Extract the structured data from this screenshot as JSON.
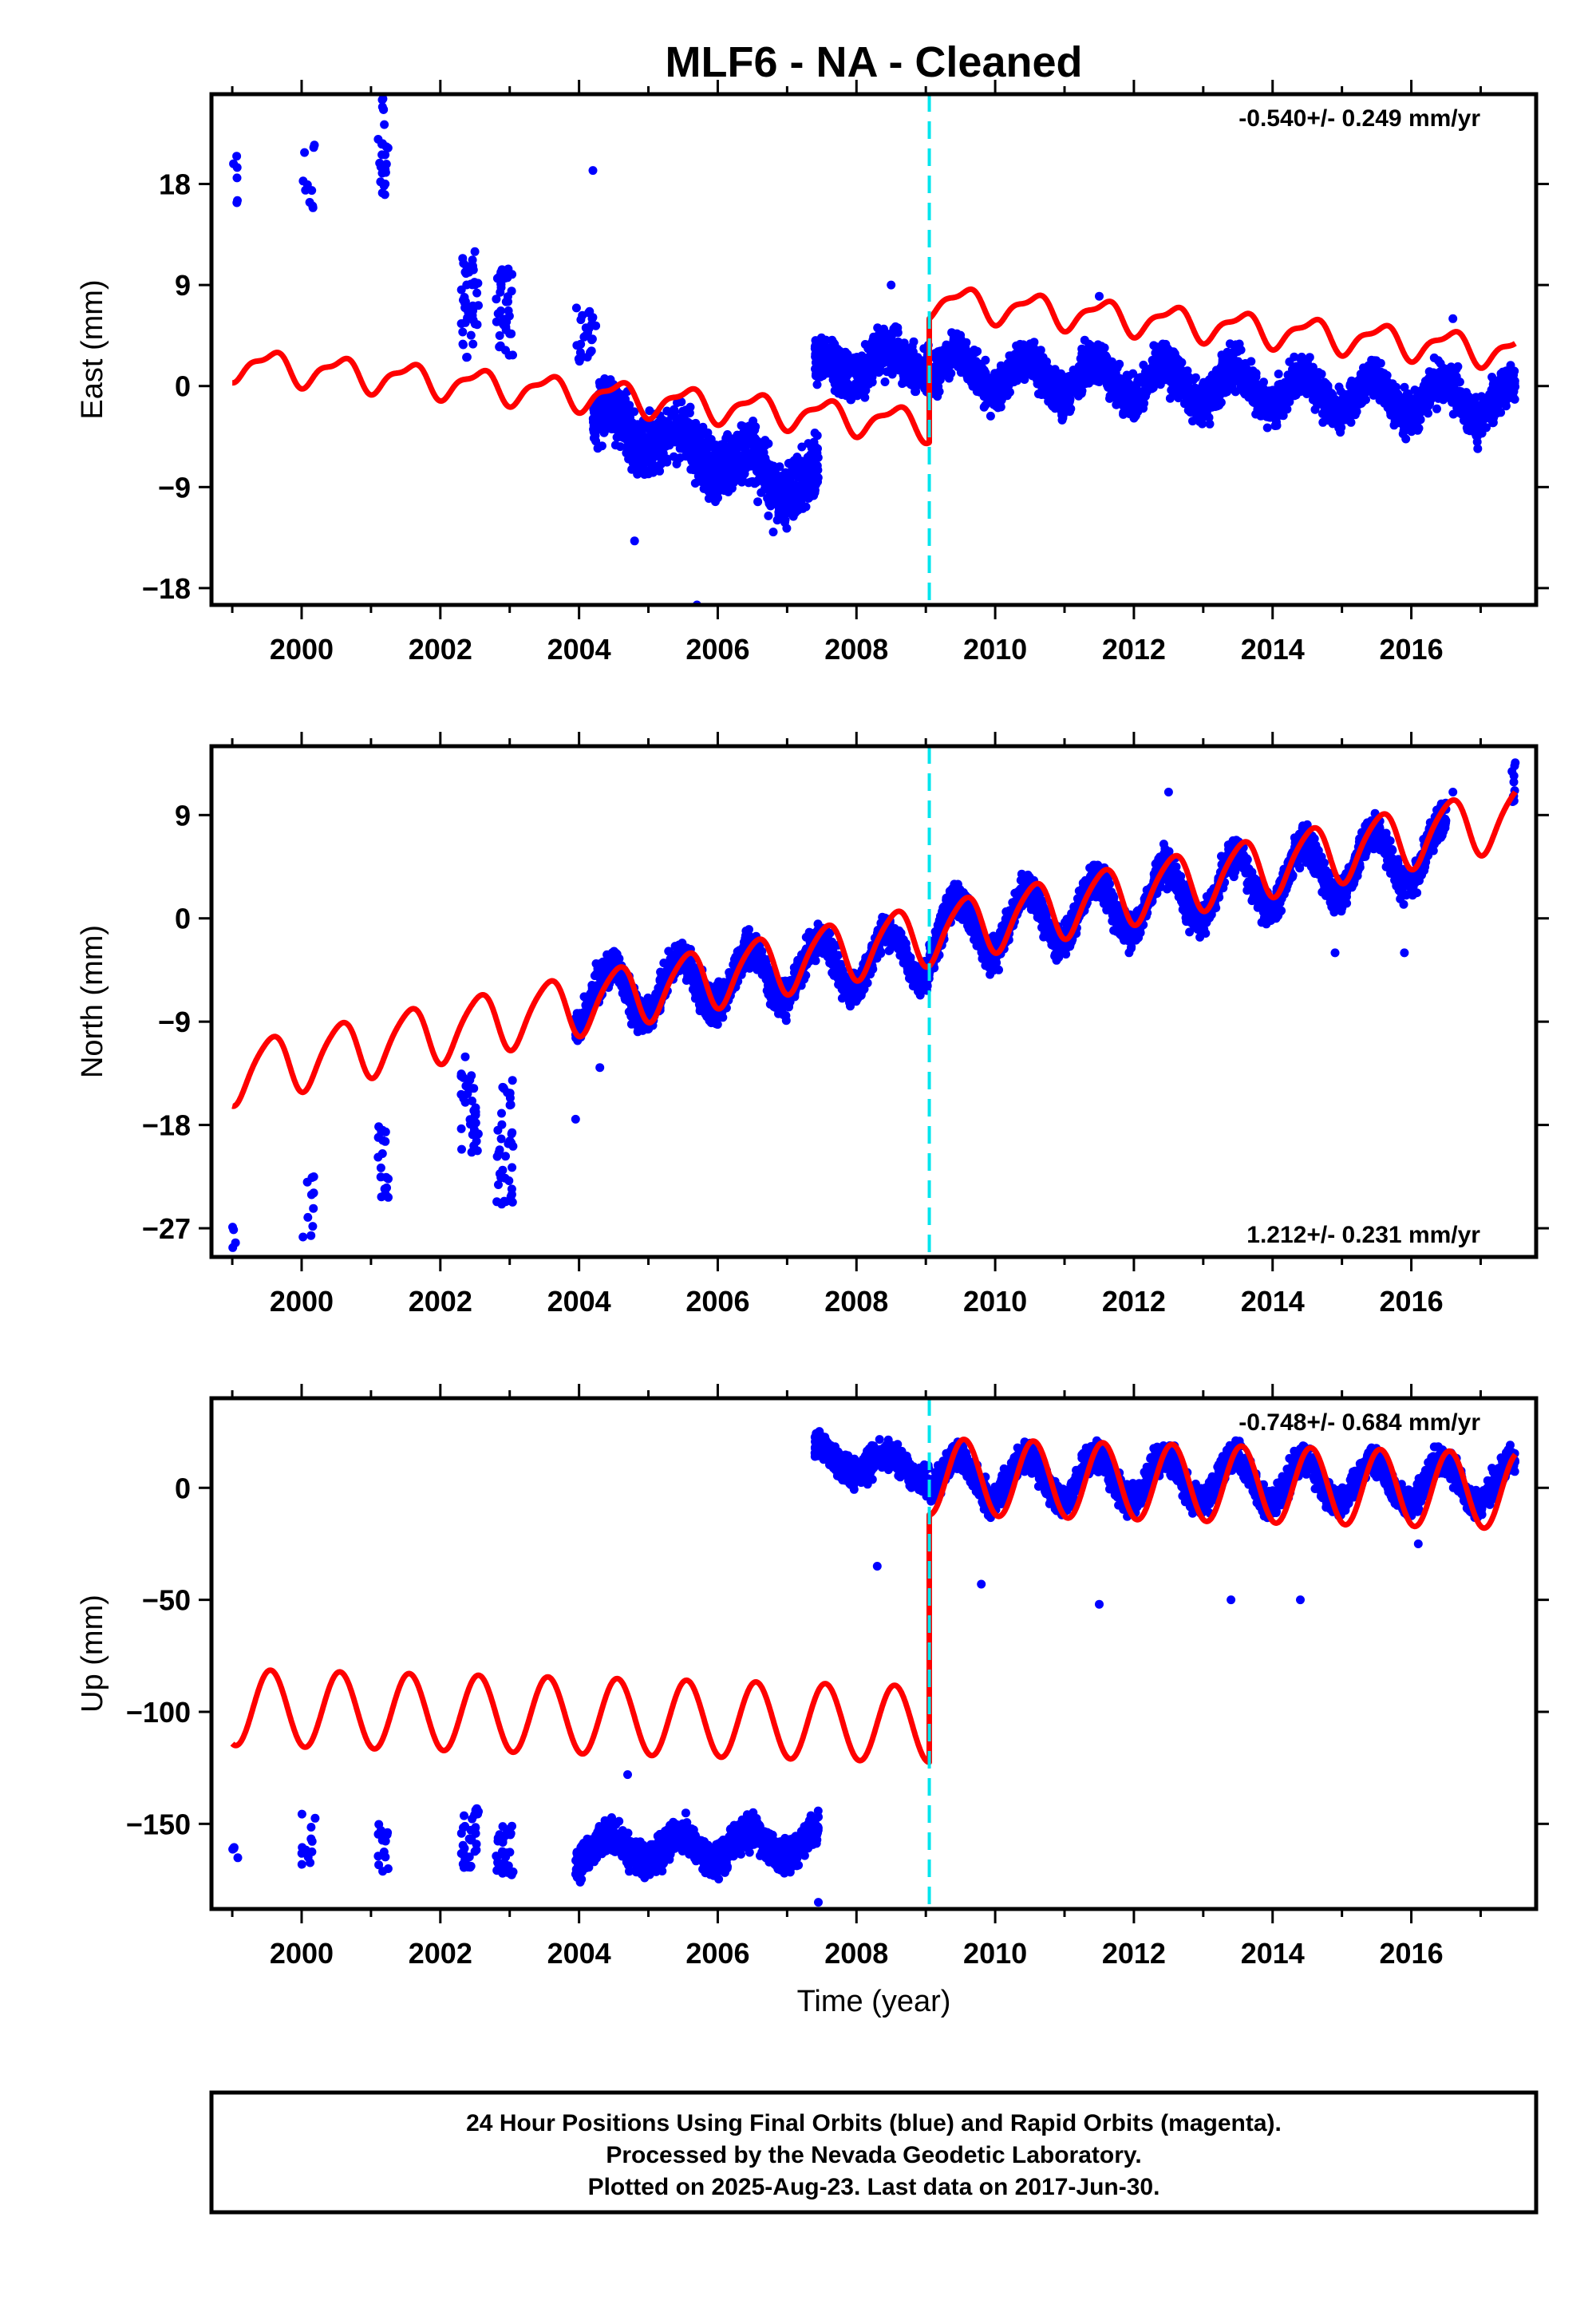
{
  "title": "MLF6  - NA - Cleaned",
  "colors": {
    "data": "#0000ff",
    "model": "#ff0000",
    "break": "#00e5ee",
    "frame": "#000000"
  },
  "footer": {
    "line1": "24 Hour Positions Using Final Orbits (blue) and Rapid Orbits (magenta).",
    "line2": "Processed by the Nevada Geodetic Laboratory.",
    "line3": "Plotted on 2025-Aug-23. Last data on 2017-Jun-30."
  },
  "chart_data": [
    {
      "type": "scatter",
      "component": "East",
      "ylabel": "East (mm)",
      "rate_text": "-0.540+/- 0.249 mm/yr",
      "rate_position": "top-right",
      "xlim": [
        1998.7,
        2017.8
      ],
      "ylim": [
        -19.5,
        26
      ],
      "yticks": [
        -18,
        -9,
        0,
        9,
        18
      ],
      "ytick_labels": [
        "−18",
        "−9",
        "0",
        "9",
        "18"
      ],
      "xticks": [
        2000,
        2002,
        2004,
        2006,
        2008,
        2010,
        2012,
        2014,
        2016
      ],
      "break_epoch": 2009.05,
      "series": [
        {
          "name": "Final Orbits (blue)",
          "clusters": [
            {
              "t0": 1999.0,
              "t1": 1999.1,
              "y_min": 14.5,
              "y_max": 20.5,
              "count": 6
            },
            {
              "t0": 2000.0,
              "t1": 2000.2,
              "y_min": 14.5,
              "y_max": 22.5,
              "count": 10
            },
            {
              "t0": 2001.1,
              "t1": 2001.25,
              "y_min": 17,
              "y_max": 26,
              "count": 25
            },
            {
              "t0": 2002.3,
              "t1": 2002.55,
              "y_min": 2.5,
              "y_max": 12,
              "count": 45
            },
            {
              "t0": 2002.8,
              "t1": 2003.05,
              "y_min": 2.5,
              "y_max": 10.5,
              "count": 40
            },
            {
              "t0": 2003.95,
              "t1": 2004.25,
              "y_min": 2,
              "y_max": 7,
              "count": 25
            },
            {
              "t0": 2004.2,
              "t1": 2007.45,
              "trend_start": -3,
              "trend_end": -9,
              "annual": 1.5,
              "scatter": 2.4,
              "count": 1200
            },
            {
              "t0": 2007.4,
              "t1": 2009.05,
              "trend_start": 1.5,
              "trend_end": 2.5,
              "annual": 1.3,
              "scatter": 1.9,
              "count": 600
            },
            {
              "t0": 2009.05,
              "t1": 2017.5,
              "trend_start": 1.5,
              "trend_end": -1.5,
              "annual": 1.6,
              "scatter": 1.7,
              "count": 2800
            }
          ],
          "outliers": [
            [
              2004.2,
              19.2
            ],
            [
              2004.8,
              -13.8
            ],
            [
              2005.7,
              -19.5
            ],
            [
              2006.8,
              -13
            ],
            [
              2008.5,
              9
            ],
            [
              2011.5,
              8
            ],
            [
              2016.6,
              6
            ]
          ]
        },
        {
          "name": "Model (red)",
          "segments": [
            {
              "t0": 1999.0,
              "t1": 2009.05,
              "offset": 2.0,
              "rate": -0.54,
              "annual": 1.3,
              "semiannual": 0.5
            },
            {
              "t0": 2009.05,
              "t1": 2017.5,
              "offset": 7.6,
              "rate": -0.54,
              "annual": 1.3,
              "semiannual": 0.5
            }
          ]
        }
      ]
    },
    {
      "type": "scatter",
      "component": "North",
      "ylabel": "North (mm)",
      "rate_text": "1.212+/- 0.231 mm/yr",
      "rate_position": "bottom-right",
      "xlim": [
        1998.7,
        2017.8
      ],
      "ylim": [
        -29.5,
        15
      ],
      "yticks": [
        -27,
        -18,
        -9,
        0,
        9
      ],
      "ytick_labels": [
        "−27",
        "−18",
        "−9",
        "0",
        "9"
      ],
      "xticks": [
        2000,
        2002,
        2004,
        2006,
        2008,
        2010,
        2012,
        2014,
        2016
      ],
      "break_epoch": 2009.05,
      "series": [
        {
          "name": "Final Orbits (blue)",
          "clusters": [
            {
              "t0": 1999.0,
              "t1": 1999.1,
              "y_min": -29,
              "y_max": -26.5,
              "count": 4
            },
            {
              "t0": 2000.0,
              "t1": 2000.2,
              "y_min": -28,
              "y_max": -21,
              "count": 10
            },
            {
              "t0": 2001.1,
              "t1": 2001.25,
              "y_min": -25,
              "y_max": -18,
              "count": 18
            },
            {
              "t0": 2002.3,
              "t1": 2002.55,
              "y_min": -20.5,
              "y_max": -12,
              "count": 35
            },
            {
              "t0": 2002.8,
              "t1": 2003.05,
              "y_min": -25,
              "y_max": -14,
              "count": 40
            },
            {
              "t0": 2003.95,
              "t1": 2009.05,
              "trend_start": -7,
              "trend_end": -3,
              "annual": 2.4,
              "scatter": 1.4,
              "count": 1700
            },
            {
              "t0": 2009.05,
              "t1": 2016.5,
              "trend_start": -1.5,
              "trend_end": 6,
              "annual": 2.6,
              "scatter": 1.4,
              "count": 2600
            },
            {
              "t0": 2017.45,
              "t1": 2017.5,
              "y_min": 9.5,
              "y_max": 14,
              "count": 10
            }
          ],
          "outliers": [
            [
              2003.95,
              -17.5
            ],
            [
              2004.3,
              -13
            ],
            [
              2012.5,
              11
            ],
            [
              2014.9,
              -3
            ],
            [
              2015.9,
              -3
            ],
            [
              2016.6,
              11
            ]
          ]
        },
        {
          "name": "Model (red)",
          "segments": [
            {
              "t0": 1999.0,
              "t1": 2017.5,
              "offset": -13.5,
              "rate": 1.212,
              "annual": 2.6,
              "semiannual": 0.4
            }
          ]
        }
      ]
    },
    {
      "type": "scatter",
      "component": "Up",
      "ylabel": "Up (mm)",
      "rate_text": "-0.748+/- 0.684 mm/yr",
      "rate_position": "top-right",
      "xlim": [
        1998.7,
        2017.8
      ],
      "ylim": [
        -188,
        40
      ],
      "yticks": [
        -150,
        -100,
        -50,
        0
      ],
      "ytick_labels": [
        "−150",
        "−100",
        "−50",
        "0"
      ],
      "xticks": [
        2000,
        2002,
        2004,
        2006,
        2008,
        2010,
        2012,
        2014,
        2016
      ],
      "xlabel": "Time (year)",
      "break_epoch": 2009.05,
      "series": [
        {
          "name": "Final Orbits (blue)",
          "clusters": [
            {
              "t0": 1999.0,
              "t1": 1999.1,
              "y_min": -166,
              "y_max": -158,
              "count": 5
            },
            {
              "t0": 2000.0,
              "t1": 2000.2,
              "y_min": -170,
              "y_max": -145,
              "count": 12
            },
            {
              "t0": 2001.1,
              "t1": 2001.25,
              "y_min": -173,
              "y_max": -150,
              "count": 16
            },
            {
              "t0": 2002.3,
              "t1": 2002.55,
              "y_min": -170,
              "y_max": -143,
              "count": 35
            },
            {
              "t0": 2002.8,
              "t1": 2003.05,
              "y_min": -174,
              "y_max": -150,
              "count": 35
            },
            {
              "t0": 2003.95,
              "t1": 2007.45,
              "trend_start": -162,
              "trend_end": -158,
              "annual": 6,
              "scatter": 7,
              "count": 1300
            },
            {
              "t0": 2007.4,
              "t1": 2009.05,
              "trend_start": 14,
              "trend_end": 8,
              "annual": 5,
              "scatter": 6,
              "count": 600
            },
            {
              "t0": 2009.05,
              "t1": 2017.5,
              "trend_start": 5,
              "trend_end": 2,
              "annual": 10,
              "scatter": 6,
              "count": 2800
            }
          ],
          "outliers": [
            [
              2007.45,
              -185
            ],
            [
              2008.3,
              -35
            ],
            [
              2009.8,
              -43
            ],
            [
              2011.5,
              -52
            ],
            [
              2013.4,
              -50
            ],
            [
              2014.4,
              -50
            ],
            [
              2016.1,
              -25
            ],
            [
              2004.7,
              -128
            ]
          ]
        },
        {
          "name": "Model (red)",
          "segments": [
            {
              "t0": 1999.0,
              "t1": 2009.05,
              "offset": -98,
              "rate": -0.748,
              "annual": 17,
              "semiannual": 0
            },
            {
              "t0": 2009.05,
              "t1": 2017.5,
              "offset": 5,
              "rate": -0.748,
              "annual": 17,
              "semiannual": 0
            }
          ]
        }
      ]
    }
  ]
}
